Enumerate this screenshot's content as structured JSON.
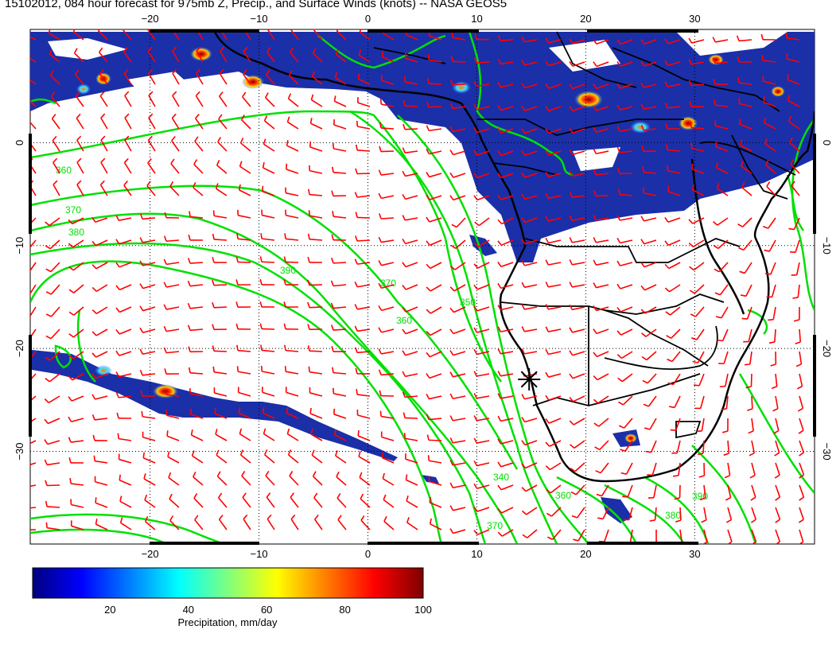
{
  "title": "15102012, 084 hour forecast for 975mb Z, Precip., and Surface Winds (knots) -- NASA GEOS5",
  "map": {
    "lon_range": [
      -31,
      41
    ],
    "lat_range": [
      11,
      -39
    ],
    "lon_ticks": [
      -20,
      -10,
      0,
      10,
      20,
      30
    ],
    "lat_ticks": [
      0,
      -10,
      -20,
      -30
    ],
    "lon_tick_labels": [
      "−20",
      "−10",
      "0",
      "10",
      "20",
      "30"
    ],
    "lat_tick_labels": [
      "0",
      "−10",
      "−20",
      "−30"
    ],
    "contour_labels": [
      "360",
      "370",
      "380",
      "390",
      "370",
      "360",
      "350",
      "340",
      "360",
      "370",
      "380",
      "390"
    ],
    "marker": {
      "symbol": "asterisk",
      "lon": 14.8,
      "lat": -23.0
    },
    "colors": {
      "precip_low": "#1b2fa8",
      "contour": "#00e000",
      "barbs": "#ff0000",
      "coast": "#000000"
    }
  },
  "colorbar": {
    "min": 0,
    "max": 100,
    "ticks": [
      "20",
      "40",
      "60",
      "80",
      "100"
    ],
    "label": "Precipitation, mm/day",
    "colors": [
      "#00007f",
      "#0000ff",
      "#007fff",
      "#00ffff",
      "#7fff7f",
      "#ffff00",
      "#ff7f00",
      "#ff0000",
      "#7f0000"
    ]
  }
}
